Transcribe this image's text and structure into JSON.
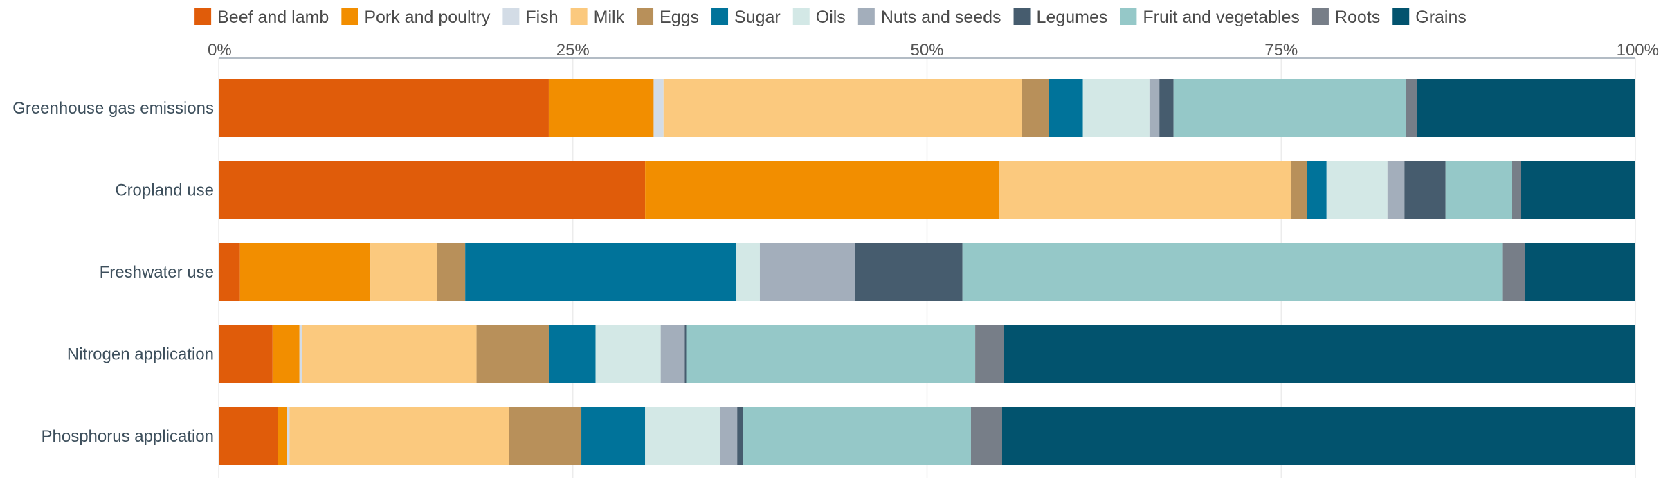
{
  "chart_data": {
    "type": "bar",
    "orientation": "horizontal",
    "stacked": true,
    "title": "",
    "xlabel": "",
    "ylabel": "",
    "xlim": [
      0,
      100
    ],
    "x_ticks": [
      "0%",
      "25%",
      "50%",
      "75%",
      "100%"
    ],
    "x_tick_values": [
      0,
      25,
      50,
      75,
      100
    ],
    "grid": true,
    "legend_position": "top",
    "categories": [
      "Greenhouse gas emissions",
      "Cropland use",
      "Freshwater use",
      "Nitrogen application",
      "Phosphorus application"
    ],
    "series": [
      {
        "name": "Beef and lamb",
        "color": "#E05C0A",
        "values": [
          23.3,
          30.1,
          1.5,
          3.8,
          4.2
        ]
      },
      {
        "name": "Pork and poultry",
        "color": "#F28E00",
        "values": [
          7.4,
          25.0,
          9.2,
          1.9,
          0.6
        ]
      },
      {
        "name": "Fish",
        "color": "#D3DCE6",
        "values": [
          0.7,
          0.0,
          0.0,
          0.2,
          0.2
        ]
      },
      {
        "name": "Milk",
        "color": "#FBC97E",
        "values": [
          25.3,
          20.6,
          4.7,
          12.3,
          15.5
        ]
      },
      {
        "name": "Eggs",
        "color": "#B8905A",
        "values": [
          1.9,
          1.1,
          2.0,
          5.1,
          5.1
        ]
      },
      {
        "name": "Sugar",
        "color": "#00739A",
        "values": [
          2.4,
          1.4,
          19.1,
          3.3,
          4.5
        ]
      },
      {
        "name": "Oils",
        "color": "#D3E8E6",
        "values": [
          4.7,
          4.3,
          1.7,
          4.6,
          5.3
        ]
      },
      {
        "name": "Nuts and seeds",
        "color": "#A3AEBB",
        "values": [
          0.7,
          1.2,
          6.7,
          1.7,
          1.2
        ]
      },
      {
        "name": "Legumes",
        "color": "#465C6E",
        "values": [
          1.0,
          2.9,
          7.6,
          0.1,
          0.4
        ]
      },
      {
        "name": "Fruit and vegetables",
        "color": "#95C8C8",
        "values": [
          16.4,
          4.7,
          38.1,
          20.4,
          16.1
        ]
      },
      {
        "name": "Roots",
        "color": "#777E88",
        "values": [
          0.8,
          0.6,
          1.6,
          2.0,
          2.2
        ]
      },
      {
        "name": "Grains",
        "color": "#02536E",
        "values": [
          15.4,
          8.1,
          7.8,
          44.6,
          44.7
        ]
      }
    ]
  }
}
